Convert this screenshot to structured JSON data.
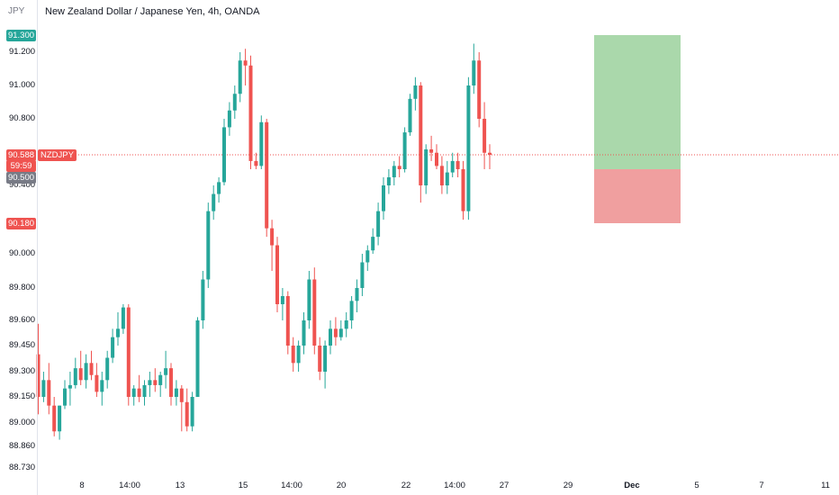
{
  "header": {
    "currency": "JPY",
    "title": "New Zealand Dollar / Japanese Yen, 4h, OANDA"
  },
  "colors": {
    "up": "#26a69a",
    "down": "#ef5350",
    "target_zone": "#a5d6a7",
    "stop_zone": "#ef9a9a",
    "price_line": "#ef5350"
  },
  "price_axis": {
    "labels": [
      "91.200",
      "91.000",
      "90.800",
      "90.400",
      "90.000",
      "89.800",
      "89.600",
      "89.450",
      "89.300",
      "89.150",
      "89.000",
      "88.860",
      "88.730"
    ]
  },
  "time_axis": {
    "labels": [
      "8",
      "14:00",
      "13",
      "15",
      "14:00",
      "20",
      "22",
      "14:00",
      "27",
      "29",
      "Dec",
      "5",
      "7",
      "11"
    ]
  },
  "badges": {
    "target": "91.300",
    "last_price": "90.588",
    "countdown": "59:59",
    "entry": "90.500",
    "stop": "90.180",
    "symbol": "NZDJPY"
  },
  "chart_data": {
    "type": "candlestick",
    "title": "New Zealand Dollar / Japanese Yen, 4h, OANDA",
    "yticks": [
      91.2,
      91.0,
      90.8,
      90.4,
      90.0,
      89.8,
      89.6,
      89.45,
      89.3,
      89.15,
      89.0,
      88.86,
      88.73
    ],
    "ylim": [
      88.68,
      91.38
    ],
    "last_price": 90.588,
    "position": {
      "entry": 90.5,
      "target": 91.3,
      "stop": 90.18
    },
    "candles": [
      {
        "o": 89.4,
        "h": 89.58,
        "l": 89.05,
        "c": 89.15
      },
      {
        "o": 89.15,
        "h": 89.3,
        "l": 89.12,
        "c": 89.25
      },
      {
        "o": 89.25,
        "h": 89.35,
        "l": 89.05,
        "c": 89.1
      },
      {
        "o": 89.1,
        "h": 89.15,
        "l": 88.92,
        "c": 88.95
      },
      {
        "o": 88.95,
        "h": 89.1,
        "l": 88.9,
        "c": 89.1
      },
      {
        "o": 89.1,
        "h": 89.25,
        "l": 89.08,
        "c": 89.2
      },
      {
        "o": 89.2,
        "h": 89.3,
        "l": 89.1,
        "c": 89.22
      },
      {
        "o": 89.22,
        "h": 89.38,
        "l": 89.2,
        "c": 89.32
      },
      {
        "o": 89.32,
        "h": 89.42,
        "l": 89.22,
        "c": 89.25
      },
      {
        "o": 89.25,
        "h": 89.4,
        "l": 89.2,
        "c": 89.35
      },
      {
        "o": 89.35,
        "h": 89.42,
        "l": 89.25,
        "c": 89.28
      },
      {
        "o": 89.28,
        "h": 89.35,
        "l": 89.15,
        "c": 89.18
      },
      {
        "o": 89.18,
        "h": 89.3,
        "l": 89.1,
        "c": 89.25
      },
      {
        "o": 89.25,
        "h": 89.42,
        "l": 89.2,
        "c": 89.38
      },
      {
        "o": 89.38,
        "h": 89.55,
        "l": 89.35,
        "c": 89.5
      },
      {
        "o": 89.5,
        "h": 89.65,
        "l": 89.45,
        "c": 89.55
      },
      {
        "o": 89.55,
        "h": 89.7,
        "l": 89.52,
        "c": 89.68
      },
      {
        "o": 89.68,
        "h": 89.7,
        "l": 89.1,
        "c": 89.15
      },
      {
        "o": 89.15,
        "h": 89.22,
        "l": 89.1,
        "c": 89.2
      },
      {
        "o": 89.2,
        "h": 89.28,
        "l": 89.12,
        "c": 89.15
      },
      {
        "o": 89.15,
        "h": 89.25,
        "l": 89.1,
        "c": 89.22
      },
      {
        "o": 89.22,
        "h": 89.3,
        "l": 89.15,
        "c": 89.25
      },
      {
        "o": 89.25,
        "h": 89.32,
        "l": 89.18,
        "c": 89.22
      },
      {
        "o": 89.22,
        "h": 89.3,
        "l": 89.15,
        "c": 89.28
      },
      {
        "o": 89.28,
        "h": 89.42,
        "l": 89.2,
        "c": 89.32
      },
      {
        "o": 89.32,
        "h": 89.35,
        "l": 89.1,
        "c": 89.15
      },
      {
        "o": 89.15,
        "h": 89.25,
        "l": 89.1,
        "c": 89.2
      },
      {
        "o": 89.2,
        "h": 89.22,
        "l": 88.95,
        "c": 89.12
      },
      {
        "o": 89.12,
        "h": 89.2,
        "l": 88.95,
        "c": 88.98
      },
      {
        "o": 88.98,
        "h": 89.18,
        "l": 88.95,
        "c": 89.15
      },
      {
        "o": 89.15,
        "h": 89.62,
        "l": 89.15,
        "c": 89.6
      },
      {
        "o": 89.6,
        "h": 89.9,
        "l": 89.55,
        "c": 89.85
      },
      {
        "o": 89.85,
        "h": 90.3,
        "l": 89.8,
        "c": 90.25
      },
      {
        "o": 90.25,
        "h": 90.4,
        "l": 90.2,
        "c": 90.35
      },
      {
        "o": 90.35,
        "h": 90.45,
        "l": 90.3,
        "c": 90.42
      },
      {
        "o": 90.42,
        "h": 90.8,
        "l": 90.4,
        "c": 90.75
      },
      {
        "o": 90.75,
        "h": 90.9,
        "l": 90.7,
        "c": 90.85
      },
      {
        "o": 90.85,
        "h": 91.0,
        "l": 90.8,
        "c": 90.95
      },
      {
        "o": 90.95,
        "h": 91.2,
        "l": 90.9,
        "c": 91.15
      },
      {
        "o": 91.15,
        "h": 91.22,
        "l": 91.0,
        "c": 91.12
      },
      {
        "o": 91.12,
        "h": 91.18,
        "l": 90.5,
        "c": 90.55
      },
      {
        "o": 90.55,
        "h": 90.6,
        "l": 90.5,
        "c": 90.52
      },
      {
        "o": 90.52,
        "h": 90.82,
        "l": 90.5,
        "c": 90.78
      },
      {
        "o": 90.78,
        "h": 90.8,
        "l": 90.1,
        "c": 90.15
      },
      {
        "o": 90.15,
        "h": 90.2,
        "l": 89.9,
        "c": 90.05
      },
      {
        "o": 90.05,
        "h": 90.1,
        "l": 89.65,
        "c": 89.7
      },
      {
        "o": 89.7,
        "h": 89.8,
        "l": 89.6,
        "c": 89.75
      },
      {
        "o": 89.75,
        "h": 89.78,
        "l": 89.4,
        "c": 89.45
      },
      {
        "o": 89.45,
        "h": 89.5,
        "l": 89.3,
        "c": 89.35
      },
      {
        "o": 89.35,
        "h": 89.48,
        "l": 89.3,
        "c": 89.45
      },
      {
        "o": 89.45,
        "h": 89.65,
        "l": 89.4,
        "c": 89.6
      },
      {
        "o": 89.6,
        "h": 89.9,
        "l": 89.55,
        "c": 89.85
      },
      {
        "o": 89.85,
        "h": 89.92,
        "l": 89.4,
        "c": 89.45
      },
      {
        "o": 89.45,
        "h": 89.5,
        "l": 89.25,
        "c": 89.3
      },
      {
        "o": 89.3,
        "h": 89.48,
        "l": 89.2,
        "c": 89.45
      },
      {
        "o": 89.45,
        "h": 89.6,
        "l": 89.4,
        "c": 89.55
      },
      {
        "o": 89.55,
        "h": 89.62,
        "l": 89.45,
        "c": 89.5
      },
      {
        "o": 89.5,
        "h": 89.6,
        "l": 89.48,
        "c": 89.55
      },
      {
        "o": 89.55,
        "h": 89.65,
        "l": 89.5,
        "c": 89.6
      },
      {
        "o": 89.6,
        "h": 89.75,
        "l": 89.55,
        "c": 89.72
      },
      {
        "o": 89.72,
        "h": 89.85,
        "l": 89.65,
        "c": 89.8
      },
      {
        "o": 89.8,
        "h": 90.0,
        "l": 89.75,
        "c": 89.95
      },
      {
        "o": 89.95,
        "h": 90.05,
        "l": 89.9,
        "c": 90.02
      },
      {
        "o": 90.02,
        "h": 90.15,
        "l": 90.0,
        "c": 90.1
      },
      {
        "o": 90.1,
        "h": 90.3,
        "l": 90.05,
        "c": 90.25
      },
      {
        "o": 90.25,
        "h": 90.45,
        "l": 90.2,
        "c": 90.4
      },
      {
        "o": 90.4,
        "h": 90.5,
        "l": 90.35,
        "c": 90.45
      },
      {
        "o": 90.45,
        "h": 90.55,
        "l": 90.4,
        "c": 90.52
      },
      {
        "o": 90.52,
        "h": 90.58,
        "l": 90.45,
        "c": 90.5
      },
      {
        "o": 90.5,
        "h": 90.75,
        "l": 90.48,
        "c": 90.72
      },
      {
        "o": 90.72,
        "h": 90.95,
        "l": 90.7,
        "c": 90.92
      },
      {
        "o": 90.92,
        "h": 91.05,
        "l": 90.85,
        "c": 91.0
      },
      {
        "o": 91.0,
        "h": 91.02,
        "l": 90.3,
        "c": 90.4
      },
      {
        "o": 90.4,
        "h": 90.65,
        "l": 90.35,
        "c": 90.62
      },
      {
        "o": 90.62,
        "h": 90.7,
        "l": 90.55,
        "c": 90.6
      },
      {
        "o": 90.6,
        "h": 90.65,
        "l": 90.5,
        "c": 90.52
      },
      {
        "o": 90.52,
        "h": 90.58,
        "l": 90.35,
        "c": 90.4
      },
      {
        "o": 90.4,
        "h": 90.55,
        "l": 90.35,
        "c": 90.48
      },
      {
        "o": 90.48,
        "h": 90.6,
        "l": 90.45,
        "c": 90.55
      },
      {
        "o": 90.55,
        "h": 90.6,
        "l": 90.45,
        "c": 90.5
      },
      {
        "o": 90.5,
        "h": 90.55,
        "l": 90.2,
        "c": 90.25
      },
      {
        "o": 90.25,
        "h": 91.05,
        "l": 90.2,
        "c": 91.0
      },
      {
        "o": 91.0,
        "h": 91.25,
        "l": 90.95,
        "c": 91.15
      },
      {
        "o": 91.15,
        "h": 91.2,
        "l": 90.75,
        "c": 90.8
      },
      {
        "o": 90.8,
        "h": 90.9,
        "l": 90.5,
        "c": 90.6
      },
      {
        "o": 90.6,
        "h": 90.65,
        "l": 90.5,
        "c": 90.588
      }
    ]
  }
}
